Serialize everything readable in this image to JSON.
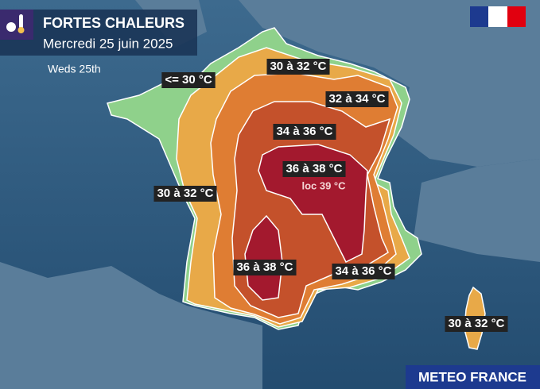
{
  "header": {
    "title": "FORTES CHALEURS",
    "subtitle": "Mercredi 25 juin 2025",
    "note": "Weds 25th"
  },
  "labels": [
    {
      "text": "<= 30 °C"
    },
    {
      "text": "30 à 32 °C"
    },
    {
      "text": "32 à 34 °C"
    },
    {
      "text": "34 à 36 °C"
    },
    {
      "text": "36 à 38 °C"
    },
    {
      "text": "loc 39 °C"
    },
    {
      "text": "30 à 32 °C"
    },
    {
      "text": "36 à 38 °C"
    },
    {
      "text": "34 à 36 °C"
    },
    {
      "text": "30 à 32 °C"
    }
  ],
  "footer": {
    "brand": "METEO FRANCE"
  }
}
